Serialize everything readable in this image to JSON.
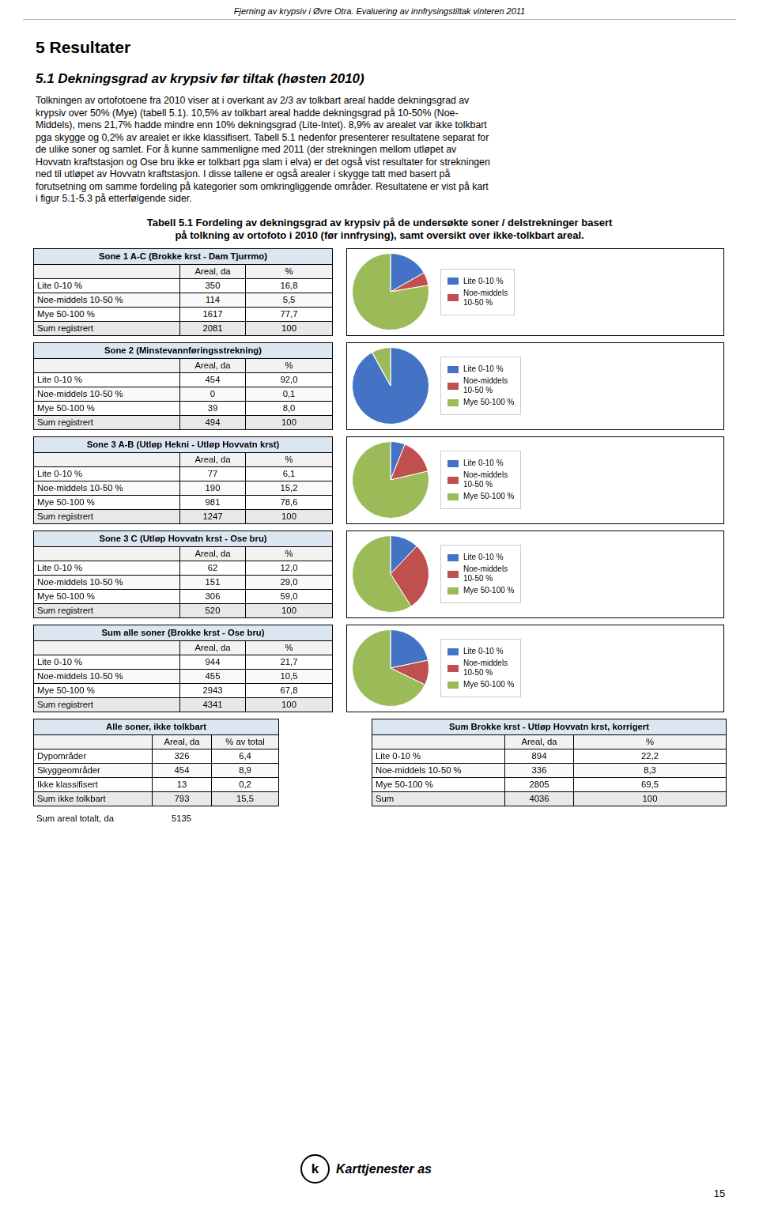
{
  "header": "Fjerning av krypsiv i Øvre Otra. Evaluering av innfrysingstiltak vinteren 2011",
  "page_number": "15",
  "title": "5  Resultater",
  "subtitle": "5.1  Dekningsgrad av krypsiv før tiltak (høsten 2010)",
  "body": [
    "Tolkningen av ortofotoene fra 2010 viser at i overkant av 2/3 av tolkbart areal hadde dekningsgrad av",
    "krypsiv over 50% (Mye) (tabell 5.1). 10,5% av tolkbart areal hadde dekningsgrad på 10-50% (Noe-",
    "Middels), mens 21,7% hadde mindre enn 10% dekningsgrad (Lite-Intet). 8,9% av arealet var ikke tolkbart",
    "pga skygge og 0,2% av arealet er ikke klassifisert. Tabell 5.1 nedenfor presenterer resultatene separat for",
    "de ulike soner og samlet. For å kunne sammenligne med 2011 (der strekningen mellom utløpet av",
    "Hovvatn kraftstasjon og Ose bru ikke er tolkbart pga slam i elva) er det også vist resultater for strekningen",
    "ned til utløpet av Hovvatn kraftstasjon. I disse tallene er også arealer i skygge tatt med basert på",
    "forutsetning om samme fordeling på kategorier som omkringliggende områder. Resultatene er vist på kart",
    "i figur 5.1-5.3 på etterfølgende sider."
  ],
  "caption": [
    "Tabell 5.1 Fordeling av dekningsgrad av krypsiv på de undersøkte soner / delstrekninger basert",
    "på tolkning av ortofoto i 2010 (før innfrysing), samt oversikt over ikke-tolkbart areal."
  ],
  "chart_data": [
    {
      "type": "pie",
      "title": "Sone 1 A-C (Brokke krst - Dam Tjurrmo)",
      "categories": [
        "Lite 0-10 %",
        "Noe-middels\n10-50 %",
        null
      ],
      "values": [
        16.8,
        5.5,
        77.7
      ],
      "colors": [
        "#4472C4",
        "#C0504D",
        "#9BBB59"
      ],
      "table": {
        "columns": [
          "Areal, da",
          "%"
        ],
        "rows": [
          [
            "Lite 0-10 %",
            "350",
            "16,8"
          ],
          [
            "Noe-middels 10-50 %",
            "114",
            "5,5"
          ],
          [
            "Mye 50-100 %",
            "1617",
            "77,7"
          ],
          [
            "Sum registrert",
            "2081",
            "100"
          ]
        ]
      }
    },
    {
      "type": "pie",
      "title": "Sone 2 (Minstevannføringsstrekning)",
      "categories": [
        "Lite 0-10 %",
        "Noe-middels\n10-50 %",
        "Mye 50-100 %"
      ],
      "values": [
        92.0,
        0.1,
        8.0
      ],
      "colors": [
        "#4472C4",
        "#C0504D",
        "#9BBB59"
      ],
      "table": {
        "columns": [
          "Areal, da",
          "%"
        ],
        "rows": [
          [
            "Lite 0-10 %",
            "454",
            "92,0"
          ],
          [
            "Noe-middels 10-50 %",
            "0",
            "0,1"
          ],
          [
            "Mye 50-100 %",
            "39",
            "8,0"
          ],
          [
            "Sum registrert",
            "494",
            "100"
          ]
        ]
      }
    },
    {
      "type": "pie",
      "title": "Sone 3 A-B (Utløp Hekni - Utløp Hovvatn krst)",
      "categories": [
        "Lite 0-10 %",
        "Noe-middels\n10-50 %",
        "Mye 50-100 %"
      ],
      "values": [
        6.1,
        15.2,
        78.6
      ],
      "colors": [
        "#4472C4",
        "#C0504D",
        "#9BBB59"
      ],
      "table": {
        "columns": [
          "Areal, da",
          "%"
        ],
        "rows": [
          [
            "Lite 0-10 %",
            "77",
            "6,1"
          ],
          [
            "Noe-middels 10-50 %",
            "190",
            "15,2"
          ],
          [
            "Mye 50-100 %",
            "981",
            "78,6"
          ],
          [
            "Sum registrert",
            "1247",
            "100"
          ]
        ]
      }
    },
    {
      "type": "pie",
      "title": "Sone 3 C (Utløp Hovvatn krst - Ose bru)",
      "categories": [
        "Lite 0-10 %",
        "Noe-middels\n10-50 %",
        "Mye 50-100 %"
      ],
      "values": [
        12.0,
        29.0,
        59.0
      ],
      "colors": [
        "#4472C4",
        "#C0504D",
        "#9BBB59"
      ],
      "table": {
        "columns": [
          "Areal, da",
          "%"
        ],
        "rows": [
          [
            "Lite 0-10 %",
            "62",
            "12,0"
          ],
          [
            "Noe-middels 10-50 %",
            "151",
            "29,0"
          ],
          [
            "Mye 50-100 %",
            "306",
            "59,0"
          ],
          [
            "Sum registrert",
            "520",
            "100"
          ]
        ]
      }
    },
    {
      "type": "pie",
      "title": "Sum alle soner (Brokke krst - Ose bru)",
      "categories": [
        "Lite 0-10 %",
        "Noe-middels\n10-50 %",
        "Mye 50-100 %"
      ],
      "values": [
        21.7,
        10.5,
        67.8
      ],
      "colors": [
        "#4472C4",
        "#C0504D",
        "#9BBB59"
      ],
      "table": {
        "columns": [
          "Areal, da",
          "%"
        ],
        "rows": [
          [
            "Lite 0-10 %",
            "944",
            "21,7"
          ],
          [
            "Noe-middels 10-50 %",
            "455",
            "10,5"
          ],
          [
            "Mye 50-100 %",
            "2943",
            "67,8"
          ],
          [
            "Sum registrert",
            "4341",
            "100"
          ]
        ]
      }
    }
  ],
  "tables": [
    {
      "title": "Alle soner, ikke tolkbart",
      "columns": [
        "Areal, da",
        "% av total"
      ],
      "rows": [
        [
          "Dypområder",
          "326",
          "6,4"
        ],
        [
          "Skyggeområder",
          "454",
          "8,9"
        ],
        [
          "Ikke klassifisert",
          "13",
          "0,2"
        ],
        [
          "Sum ikke tolkbart",
          "793",
          "15,5"
        ]
      ],
      "total": [
        "Sum areal totalt, da",
        "5135"
      ]
    },
    {
      "title": "Sum Brokke krst - Utløp Hovvatn krst, korrigert",
      "columns": [
        "Areal, da",
        "%"
      ],
      "rows": [
        [
          "Lite 0-10 %",
          "894",
          "22,2"
        ],
        [
          "Noe-middels 10-50 %",
          "336",
          "8,3"
        ],
        [
          "Mye 50-100 %",
          "2805",
          "69,5"
        ],
        [
          "Sum",
          "4036",
          "100"
        ]
      ]
    }
  ],
  "logo": {
    "mark": "k",
    "text": "Karttjenester as"
  }
}
